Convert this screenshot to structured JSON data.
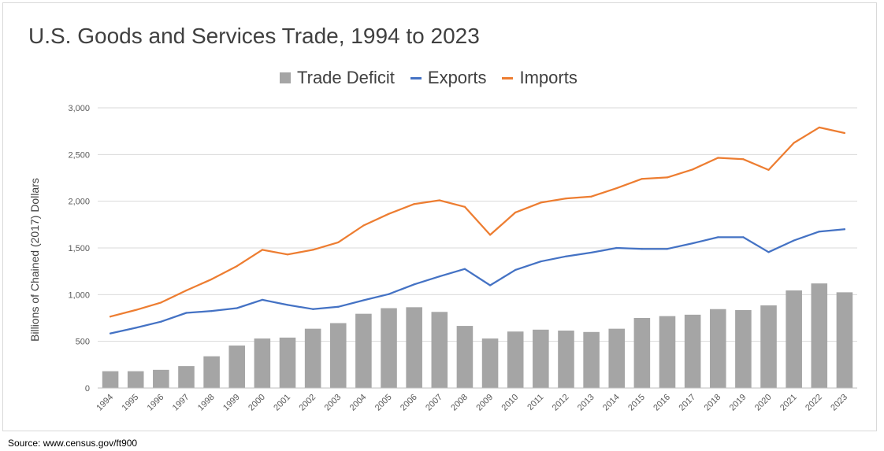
{
  "source": "Source: www.census.gov/ft900",
  "colors": {
    "deficit": "#a5a5a5",
    "exports": "#4472c4",
    "imports": "#ed7d31",
    "grid": "#d9d9d9"
  },
  "chart_data": {
    "type": "bar",
    "title": "U.S. Goods and Services Trade, 1994 to 2023",
    "xlabel": "",
    "ylabel": "Billions of Chained (2017) Dollars",
    "ylim": [
      0,
      3000
    ],
    "yticks": [
      0,
      500,
      1000,
      1500,
      2000,
      2500,
      3000
    ],
    "ytick_labels": [
      "0",
      "500",
      "1,000",
      "1,500",
      "2,000",
      "2,500",
      "3,000"
    ],
    "grid": true,
    "legend_position": "top-center",
    "categories": [
      "1994",
      "1995",
      "1996",
      "1997",
      "1998",
      "1999",
      "2000",
      "2001",
      "2002",
      "2003",
      "2004",
      "2005",
      "2006",
      "2007",
      "2008",
      "2009",
      "2010",
      "2011",
      "2012",
      "2013",
      "2014",
      "2015",
      "2016",
      "2017",
      "2018",
      "2019",
      "2020",
      "2021",
      "2022",
      "2023"
    ],
    "series": [
      {
        "name": "Trade Deficit",
        "type": "bar",
        "values": [
          180,
          180,
          195,
          235,
          340,
          455,
          530,
          540,
          635,
          695,
          795,
          855,
          865,
          815,
          665,
          530,
          605,
          625,
          615,
          600,
          635,
          750,
          770,
          785,
          845,
          835,
          885,
          1045,
          1120,
          1025
        ]
      },
      {
        "name": "Exports",
        "type": "line",
        "values": [
          585,
          645,
          710,
          805,
          825,
          855,
          945,
          890,
          845,
          870,
          940,
          1005,
          1110,
          1195,
          1275,
          1100,
          1265,
          1355,
          1410,
          1450,
          1500,
          1490,
          1490,
          1550,
          1615,
          1615,
          1455,
          1580,
          1675,
          1700
        ]
      },
      {
        "name": "Imports",
        "type": "line",
        "values": [
          765,
          835,
          915,
          1045,
          1165,
          1305,
          1480,
          1430,
          1480,
          1560,
          1740,
          1865,
          1970,
          2010,
          1940,
          1640,
          1880,
          1985,
          2030,
          2050,
          2140,
          2240,
          2255,
          2340,
          2465,
          2450,
          2335,
          2625,
          2790,
          2730
        ]
      }
    ]
  }
}
